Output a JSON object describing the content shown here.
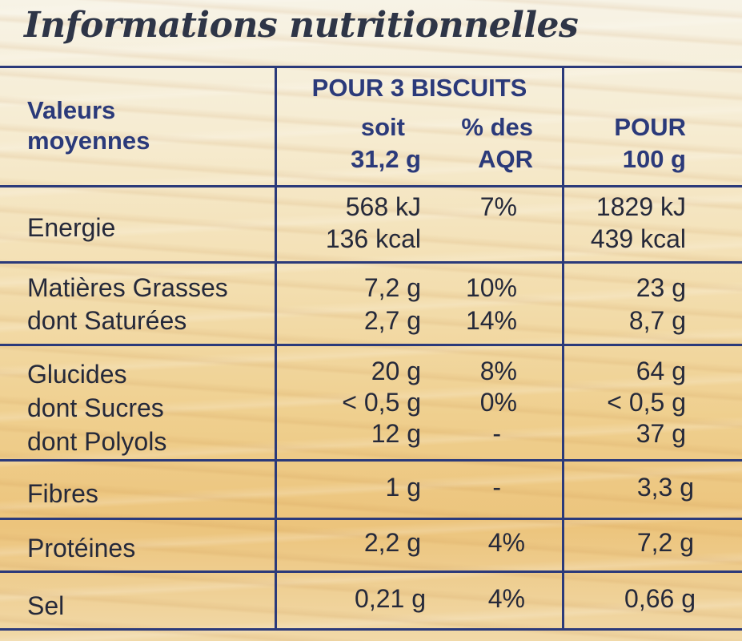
{
  "title": "Informations nutritionnelles",
  "header": {
    "col1_line1": "Valeurs",
    "col1_line2": "moyennes",
    "group_title": "POUR 3 BISCUITS",
    "col2_line1": "soit",
    "col2_line2": "31,2 g",
    "col3_line1": "% des",
    "col3_line2": "AQR",
    "col4_line1": "POUR",
    "col4_line2": "100 g"
  },
  "rows": {
    "energie": {
      "label": "Energie",
      "portion_kj": "568 kJ",
      "portion_kcal": "136 kcal",
      "aqr": "7%",
      "per100_kj": "1829 kJ",
      "per100_kcal": "439 kcal"
    },
    "matieres_grasses": {
      "label": "Matières Grasses",
      "portion": "7,2 g",
      "aqr": "10%",
      "per100": "23 g"
    },
    "saturees": {
      "label": "dont Saturées",
      "portion": "2,7 g",
      "aqr": "14%",
      "per100": "8,7 g"
    },
    "glucides": {
      "label": "Glucides",
      "portion": "20 g",
      "aqr": "8%",
      "per100": "64 g"
    },
    "sucres": {
      "label": "dont Sucres",
      "portion": "< 0,5 g",
      "aqr": "0%",
      "per100": "< 0,5 g"
    },
    "polyols": {
      "label": "dont Polyols",
      "portion": "12 g",
      "aqr": "-",
      "per100": "37 g"
    },
    "fibres": {
      "label": "Fibres",
      "portion": "1 g",
      "aqr": "-",
      "per100": "3,3 g"
    },
    "proteines": {
      "label": "Protéines",
      "portion": "2,2 g",
      "aqr": "4%",
      "per100": "7,2 g"
    },
    "sel": {
      "label": "Sel",
      "portion": "0,21 g",
      "aqr": "4%",
      "per100": "0,66 g"
    }
  }
}
